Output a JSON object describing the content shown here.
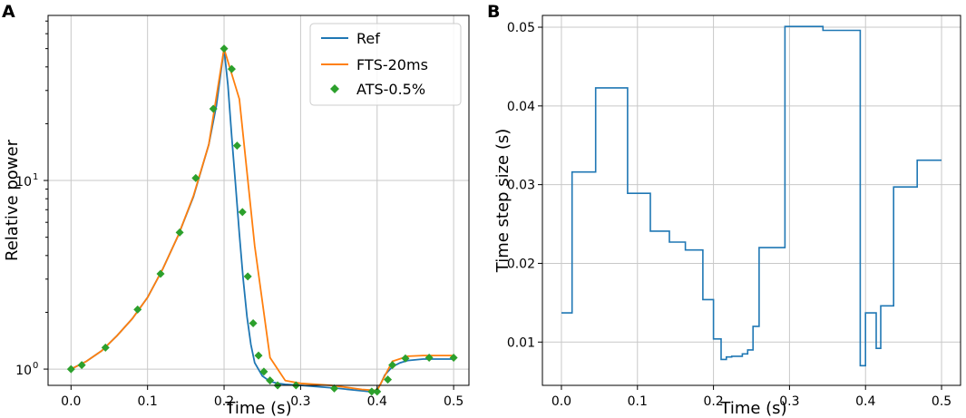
{
  "chart_data": [
    {
      "type": "line",
      "panel_label": "A",
      "xlabel": "Time (s)",
      "ylabel": "Relative power",
      "xlim": [
        -0.03,
        0.52
      ],
      "ylim": [
        0.82,
        75
      ],
      "yscale": "log",
      "grid": true,
      "legend_position": "top-right",
      "x_ticks": [
        {
          "value": 0.0,
          "label": "0.0"
        },
        {
          "value": 0.1,
          "label": "0.1"
        },
        {
          "value": 0.2,
          "label": "0.2"
        },
        {
          "value": 0.3,
          "label": "0.3"
        },
        {
          "value": 0.4,
          "label": "0.4"
        },
        {
          "value": 0.5,
          "label": "0.5"
        }
      ],
      "y_ticks": [
        {
          "value": 1,
          "base": "10",
          "exp": "0"
        },
        {
          "value": 10,
          "base": "10",
          "exp": "1"
        }
      ],
      "series": [
        {
          "name": "Ref",
          "style": "line",
          "color": "#1f77b4",
          "x": [
            0.0,
            0.02,
            0.04,
            0.06,
            0.08,
            0.1,
            0.12,
            0.14,
            0.16,
            0.18,
            0.19,
            0.2,
            0.205,
            0.21,
            0.215,
            0.22,
            0.225,
            0.23,
            0.235,
            0.24,
            0.25,
            0.26,
            0.27,
            0.28,
            0.3,
            0.35,
            0.39,
            0.395,
            0.4,
            0.405,
            0.41,
            0.42,
            0.43,
            0.44,
            0.46,
            0.5
          ],
          "y": [
            1.0,
            1.1,
            1.25,
            1.5,
            1.85,
            2.4,
            3.4,
            5.1,
            8.2,
            15.5,
            25,
            50,
            32,
            17,
            9.5,
            5.2,
            3.0,
            1.9,
            1.35,
            1.08,
            0.92,
            0.86,
            0.84,
            0.83,
            0.82,
            0.79,
            0.76,
            0.76,
            0.78,
            0.84,
            0.93,
            1.03,
            1.08,
            1.11,
            1.13,
            1.13
          ]
        },
        {
          "name": "FTS-20ms",
          "style": "line",
          "color": "#ff7f0e",
          "x": [
            0.0,
            0.02,
            0.04,
            0.06,
            0.08,
            0.1,
            0.12,
            0.14,
            0.16,
            0.18,
            0.2,
            0.22,
            0.24,
            0.26,
            0.28,
            0.3,
            0.32,
            0.34,
            0.36,
            0.38,
            0.4,
            0.42,
            0.44,
            0.46,
            0.48,
            0.5
          ],
          "y": [
            1.0,
            1.1,
            1.25,
            1.5,
            1.85,
            2.4,
            3.4,
            5.1,
            8.3,
            15.5,
            50,
            27,
            4.5,
            1.15,
            0.87,
            0.84,
            0.83,
            0.82,
            0.8,
            0.78,
            0.77,
            1.1,
            1.17,
            1.18,
            1.18,
            1.18
          ]
        },
        {
          "name": "ATS-0.5%",
          "style": "marker",
          "marker": "diamond",
          "color": "#2ca02c",
          "x": [
            0.0,
            0.014,
            0.045,
            0.087,
            0.117,
            0.142,
            0.163,
            0.186,
            0.2,
            0.21,
            0.217,
            0.224,
            0.231,
            0.238,
            0.245,
            0.252,
            0.26,
            0.27,
            0.294,
            0.344,
            0.393,
            0.4,
            0.414,
            0.42,
            0.437,
            0.468,
            0.5
          ],
          "y": [
            1.0,
            1.05,
            1.3,
            2.07,
            3.2,
            5.3,
            10.3,
            24,
            50,
            39,
            15.3,
            6.8,
            3.1,
            1.75,
            1.18,
            0.97,
            0.87,
            0.82,
            0.82,
            0.79,
            0.76,
            0.76,
            0.88,
            1.05,
            1.14,
            1.15,
            1.15
          ]
        }
      ]
    },
    {
      "type": "line",
      "panel_label": "B",
      "xlabel": "Time (s)",
      "ylabel": "Time step size (s)",
      "xlim": [
        -0.025,
        0.525
      ],
      "ylim": [
        0.0045,
        0.0515
      ],
      "grid": true,
      "x_ticks": [
        {
          "value": 0.0,
          "label": "0.0"
        },
        {
          "value": 0.1,
          "label": "0.1"
        },
        {
          "value": 0.2,
          "label": "0.2"
        },
        {
          "value": 0.3,
          "label": "0.3"
        },
        {
          "value": 0.4,
          "label": "0.4"
        },
        {
          "value": 0.5,
          "label": "0.5"
        }
      ],
      "y_ticks": [
        {
          "value": 0.01,
          "label": "0.01"
        },
        {
          "value": 0.02,
          "label": "0.02"
        },
        {
          "value": 0.03,
          "label": "0.03"
        },
        {
          "value": 0.04,
          "label": "0.04"
        },
        {
          "value": 0.05,
          "label": "0.05"
        }
      ],
      "series": [
        {
          "name": "Time step size",
          "style": "step-post",
          "color": "#1f77b4",
          "x": [
            0.0,
            0.014,
            0.045,
            0.087,
            0.117,
            0.142,
            0.163,
            0.186,
            0.2,
            0.21,
            0.217,
            0.224,
            0.231,
            0.238,
            0.245,
            0.252,
            0.26,
            0.27,
            0.294,
            0.344,
            0.393,
            0.4,
            0.414,
            0.42,
            0.437,
            0.468,
            0.5
          ],
          "y": [
            0.0137,
            0.0316,
            0.0423,
            0.0289,
            0.0241,
            0.0227,
            0.0217,
            0.0154,
            0.0104,
            0.0078,
            0.0081,
            0.0082,
            0.0082,
            0.0085,
            0.009,
            0.012,
            0.022,
            0.022,
            0.0501,
            0.0496,
            0.007,
            0.0137,
            0.0092,
            0.0146,
            0.0297,
            0.0331,
            0.0331
          ]
        }
      ]
    }
  ]
}
